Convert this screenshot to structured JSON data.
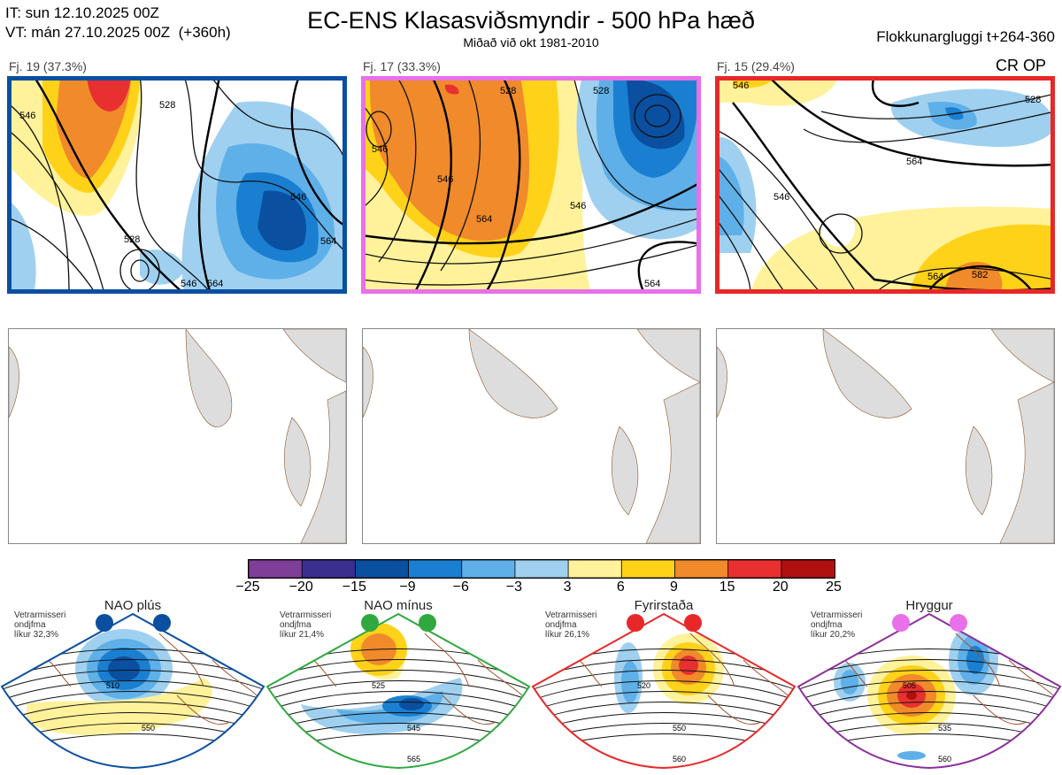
{
  "header": {
    "it_line": "IT: sun 12.10.2025 00Z",
    "vt_line": "VT: mán 27.10.2025 00Z  (+360h)",
    "title": "EC-ENS Klasasviðsmyndir - 500 hPa hæð",
    "subtitle": "Miðað við okt 1981-2010",
    "window": "Flokkunargluggi t+264-360",
    "cr_op": "CR OP"
  },
  "panels": [
    {
      "label": "Fj. 19 (37.3%)",
      "border_color": "#0a4fa0",
      "contours": [
        "546",
        "528",
        "564",
        "528",
        "546",
        "564",
        "546"
      ]
    },
    {
      "label": "Fj. 17 (33.3%)",
      "border_color": "#e870e8",
      "contours": [
        "546",
        "528",
        "546",
        "564",
        "546",
        "564",
        "528"
      ]
    },
    {
      "label": "Fj. 15 (29.4%)",
      "border_color": "#e82828",
      "contours": [
        "546",
        "528",
        "546",
        "564",
        "564",
        "582"
      ]
    }
  ],
  "colors": {
    "accent_blue": "#0a4fa0",
    "pink": "#e870e8",
    "red": "#e82828",
    "green": "#2fa840",
    "purple": "#8a2f9a"
  },
  "chart_data": {
    "type": "heatmap",
    "title": "EC-ENS Klasasviðsmyndir - 500 hPa hæð",
    "colorbar": {
      "ticks": [
        "−25",
        "−20",
        "−15",
        "−9",
        "−6",
        "−3",
        "3",
        "6",
        "9",
        "15",
        "20",
        "25"
      ],
      "colors": [
        "#7f3f98",
        "#3a2f8f",
        "#0a4fa0",
        "#1a7fd0",
        "#5fb0e8",
        "#9fd0f0",
        "#ffffff",
        "#fff29a",
        "#ffd21a",
        "#f08a2a",
        "#e83030",
        "#b01010"
      ]
    },
    "regimes": [
      {
        "name": "NAO plús",
        "info1": "Vetrarmisseri",
        "info2": "ondjfma",
        "info3": "líkur 32,3%",
        "dot": "#0a4fa0",
        "edge": "#0a4fa0",
        "contours": [
          "510",
          "550"
        ]
      },
      {
        "name": "NAO mínus",
        "info1": "Vetrarmisseri",
        "info2": "ondjfma",
        "info3": "líkur 21,4%",
        "dot": "#2fa840",
        "edge": "#2fa840",
        "contours": [
          "525",
          "545",
          "565"
        ]
      },
      {
        "name": "Fyrirstaða",
        "info1": "Vetrarmisseri",
        "info2": "ondjfma",
        "info3": "líkur 26,1%",
        "dot": "#e82828",
        "edge": "#e82828",
        "contours": [
          "520",
          "550",
          "560"
        ]
      },
      {
        "name": "Hryggur",
        "info1": "Vetrarmisseri",
        "info2": "ondjfma",
        "info3": "líkur 20,2%",
        "dot": "#e870e8",
        "edge": "#8a2f9a",
        "contours": [
          "505",
          "535",
          "560"
        ]
      }
    ]
  }
}
